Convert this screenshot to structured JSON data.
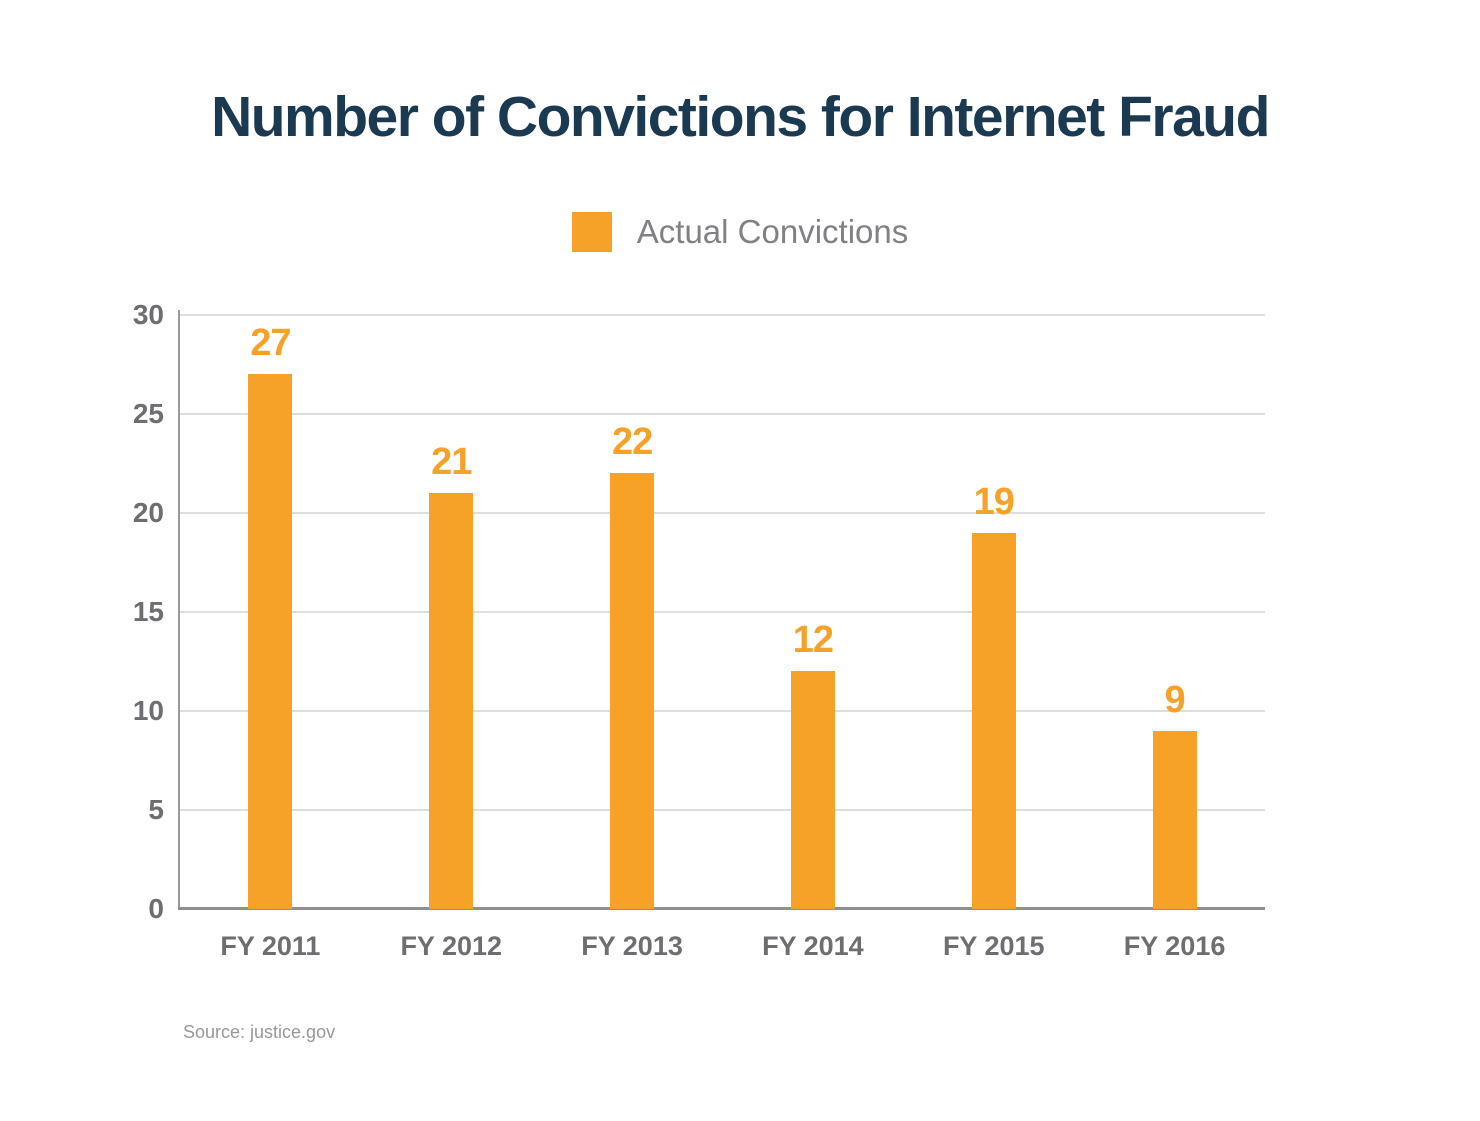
{
  "title": "Number of Convictions for Internet Fraud",
  "legend": {
    "label": "Actual Convictions",
    "swatch_color": "#F6A228"
  },
  "source": "Source: justice.gov",
  "colors": {
    "bar": "#F6A228",
    "title_text": "#1B3A52",
    "axis_label_text": "#6D6E71",
    "legend_text": "#808184",
    "gridline": "#DEDEDE",
    "axis_line": "#97999C",
    "source_text": "#96989A"
  },
  "chart_data": {
    "type": "bar",
    "title": "Number of Convictions for Internet Fraud",
    "series_name": "Actual Convictions",
    "categories": [
      "FY 2011",
      "FY 2012",
      "FY 2013",
      "FY 2014",
      "FY 2015",
      "FY 2016"
    ],
    "values": [
      27,
      21,
      22,
      12,
      19,
      9
    ],
    "xlabel": "",
    "ylabel": "",
    "ylim": [
      0,
      30
    ],
    "yticks": [
      0,
      5,
      10,
      15,
      20,
      25,
      30
    ],
    "grid": true,
    "legend_position": "top-center",
    "bar_color": "#F6A228",
    "value_labels_shown": true
  }
}
